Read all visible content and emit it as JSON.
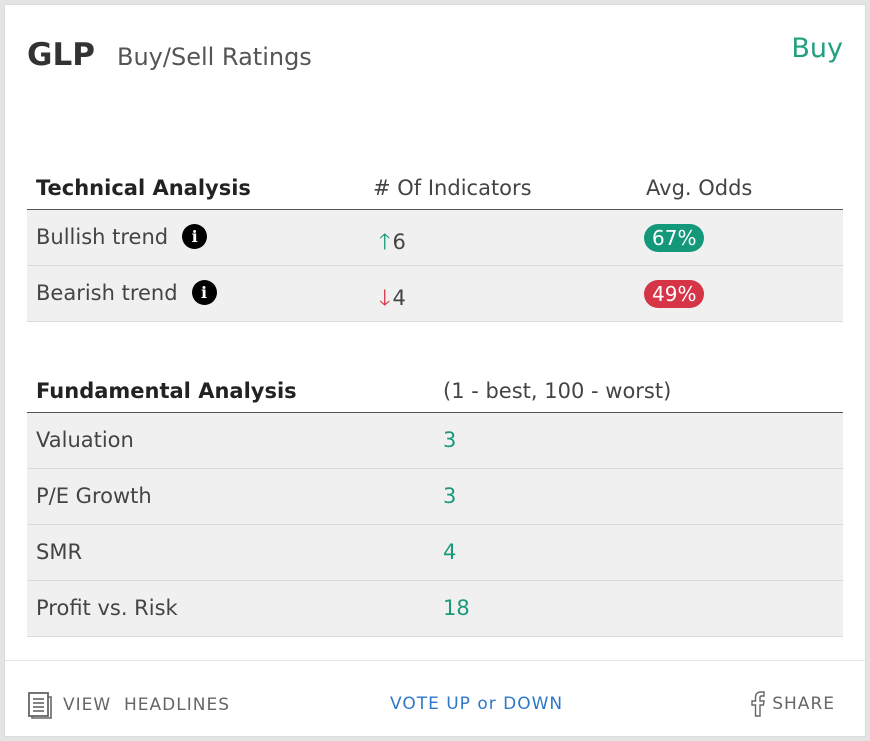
{
  "header": {
    "ticker": "GLP",
    "subtitle": "Buy/Sell Ratings",
    "rating": "Buy"
  },
  "technical": {
    "headers": [
      "Technical Analysis",
      "# Of Indicators",
      "Avg. Odds"
    ],
    "rows": [
      {
        "label": "Bullish trend",
        "direction": "up",
        "arrow": "🡑",
        "count": "6",
        "odds": "67%",
        "odds_color": "#14987a"
      },
      {
        "label": "Bearish trend",
        "direction": "down",
        "arrow": "🡓",
        "count": "4",
        "odds": "49%",
        "odds_color": "#d63447"
      }
    ],
    "info_icon": "i"
  },
  "fundamental": {
    "headers": [
      "Fundamental Analysis",
      "(1 - best, 100 - worst)"
    ],
    "rows": [
      {
        "label": "Valuation",
        "value": "3"
      },
      {
        "label": "P/E Growth",
        "value": "3"
      },
      {
        "label": "SMR",
        "value": "4"
      },
      {
        "label": "Profit vs. Risk",
        "value": "18"
      }
    ]
  },
  "footer": {
    "view_headlines": "VIEW  HEADLINES",
    "vote": "VOTE UP or DOWN",
    "share": "SHARE"
  },
  "colors": {
    "accent_green": "#20a080",
    "red": "#d63447",
    "link_blue": "#2e78c9"
  }
}
